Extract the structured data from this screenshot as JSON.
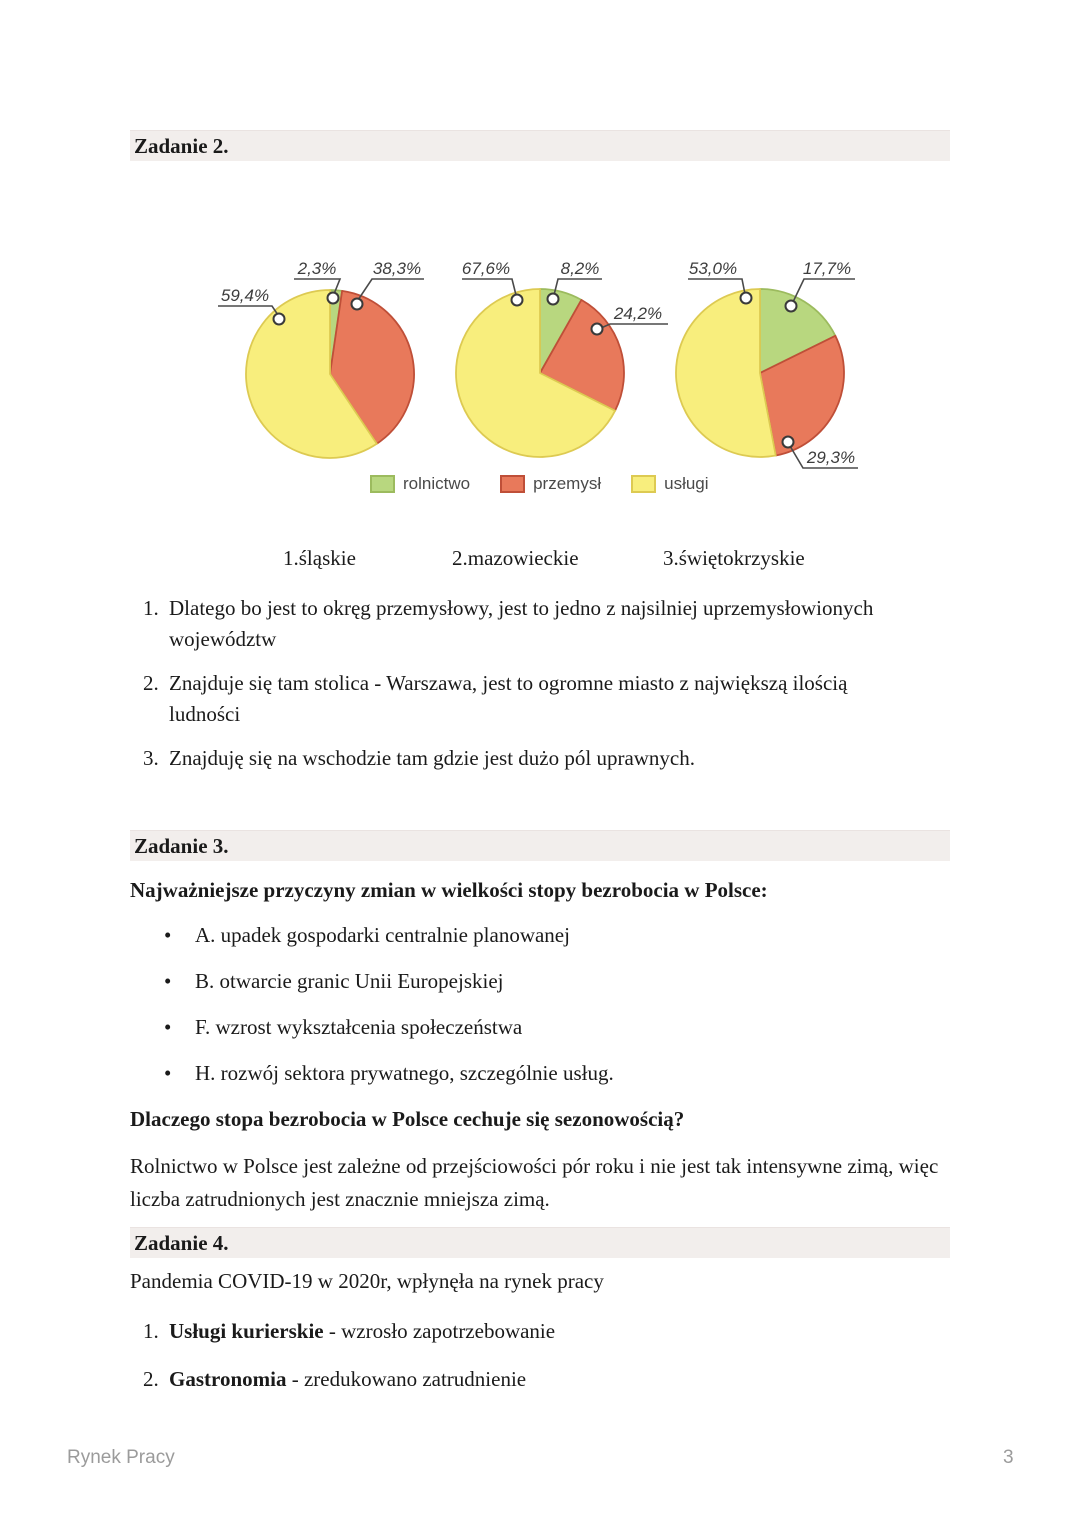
{
  "document": {
    "footer_left": "Rynek Pracy",
    "page_number": "3"
  },
  "zadanie2": {
    "header": "Zadanie 2.",
    "answers": [
      {
        "number": "1.",
        "text": "Dlatego bo jest to okręg przemysłowy, jest to jedno z najsilniej uprzemysłowionych województw"
      },
      {
        "number": "2.",
        "text": "Znajduje się tam stolica - Warszawa, jest to ogromne miasto z największą ilością ludności"
      },
      {
        "number": "3.",
        "text": "Znajduję się na wschodzie tam gdzie jest dużo pól uprawnych."
      }
    ]
  },
  "zadanie3": {
    "header": "Zadanie 3.",
    "intro": "Najważniejsze przyczyny zmian w wielkości stopy bezrobocia w Polsce:",
    "bullets": [
      "A. upadek gospodarki centralnie planowanej",
      "B. otwarcie granic Unii Europejskiej",
      "F. wzrost wykształcenia społeczeństwa",
      "H. rozwój sektora prywatnego, szczególnie usług."
    ],
    "question": "Dlaczego stopa bezrobocia w Polsce cechuje się sezonowością?",
    "answer": "Rolnictwo w Polsce jest zależne od przejściowości pór roku i nie jest tak intensywne zimą, więc liczba zatrudnionych jest znacznie mniejsza zimą."
  },
  "zadanie4": {
    "header": "Zadanie 4.",
    "intro": "Pandemia COVID-19 w 2020r, wpłynęła na rynek pracy",
    "items": [
      {
        "number": "1.",
        "bold": "Usługi kurierskie",
        "rest": " - wzrosło zapotrzebowanie"
      },
      {
        "number": "2.",
        "bold": "Gastronomia",
        "rest": " - zredukowano zatrudnienie"
      }
    ]
  },
  "chart_data": {
    "type": "pie",
    "categories": [
      "rolnictwo",
      "przemysł",
      "usługi"
    ],
    "legend": [
      "rolnictwo",
      "przemysł",
      "usługi"
    ],
    "colors": {
      "rolnictwo": "#b8d77f",
      "przemysl": "#e8795b",
      "uslugi": "#f8ee7d"
    },
    "pies": [
      {
        "label": "1.śląskie",
        "values": [
          2.3,
          38.3,
          59.4
        ],
        "display": [
          "2,3%",
          "38,3%",
          "59,4%"
        ]
      },
      {
        "label": "2.mazowieckie",
        "values": [
          8.2,
          24.2,
          67.6
        ],
        "display": [
          "8,2%",
          "24,2%",
          "67,6%"
        ]
      },
      {
        "label": "3.świętokrzyskie",
        "values": [
          17.7,
          29.3,
          53.0
        ],
        "display": [
          "17,7%",
          "29,3%",
          "53,0%"
        ]
      }
    ]
  }
}
